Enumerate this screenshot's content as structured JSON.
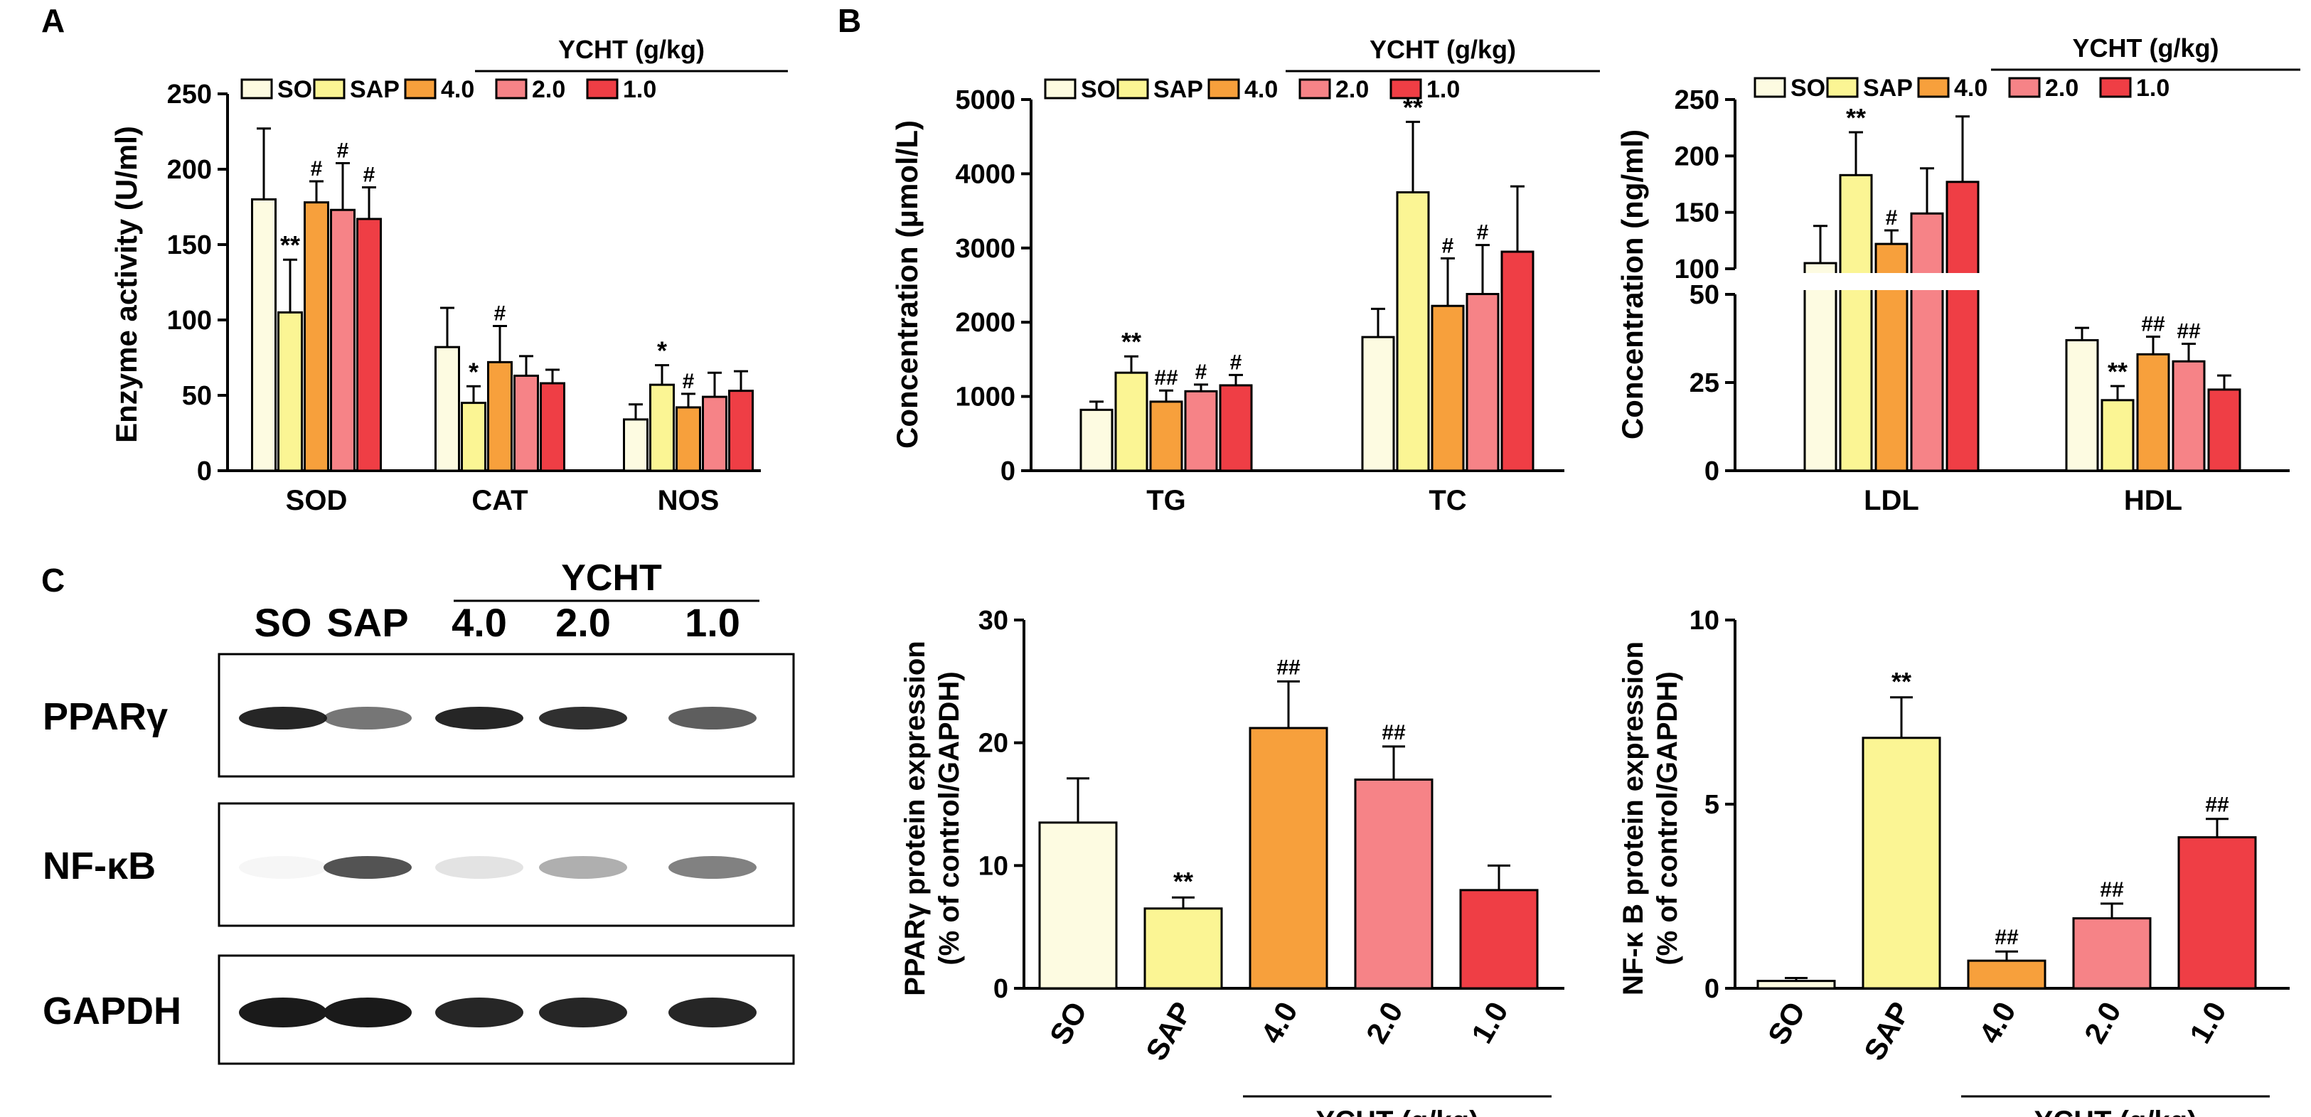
{
  "panel_letters": {
    "a": "A",
    "b": "B",
    "c": "C"
  },
  "colors": {
    "SO": "#FDFBE1",
    "SAP": "#FBF594",
    "4.0": "#F7A03C",
    "2.0": "#F68387",
    "1.0": "#EF3E45",
    "axis": "#000000"
  },
  "western_blot": {
    "header": {
      "ycht": "YCHT"
    },
    "lanes": [
      "SO",
      "SAP",
      "4.0",
      "2.0",
      "1.0"
    ],
    "rows": [
      {
        "label": "PPARγ",
        "intensities": [
          0.95,
          0.6,
          0.95,
          0.9,
          0.7
        ]
      },
      {
        "label": "NF-κB",
        "intensities": [
          0.04,
          0.75,
          0.12,
          0.35,
          0.55
        ]
      },
      {
        "label": "GAPDH",
        "intensities": [
          1.0,
          1.0,
          0.95,
          0.95,
          0.95
        ]
      }
    ]
  },
  "chart_data": [
    {
      "id": "A",
      "type": "bar",
      "ylabel": "Enzyme activity (U/ml)",
      "ylim": [
        0,
        250
      ],
      "yticks": [
        "0",
        "50",
        "100",
        "150",
        "200",
        "250"
      ],
      "legend": [
        "SO",
        "SAP",
        "4.0",
        "2.0",
        "1.0"
      ],
      "legend_header": "YCHT (g/kg)",
      "categories": [
        "SOD",
        "CAT",
        "NOS"
      ],
      "series": [
        {
          "name": "SO",
          "values": [
            180,
            82,
            34
          ],
          "errors": [
            47,
            26,
            10
          ],
          "marks": [
            "",
            "",
            ""
          ]
        },
        {
          "name": "SAP",
          "values": [
            105,
            45,
            57
          ],
          "errors": [
            35,
            11,
            13
          ],
          "marks": [
            "**",
            "*",
            "*"
          ]
        },
        {
          "name": "4.0",
          "values": [
            178,
            72,
            42
          ],
          "errors": [
            14,
            24,
            9
          ],
          "marks": [
            "#",
            "#",
            "#"
          ]
        },
        {
          "name": "2.0",
          "values": [
            173,
            63,
            49
          ],
          "errors": [
            31,
            13,
            16
          ],
          "marks": [
            "#",
            "",
            ""
          ]
        },
        {
          "name": "1.0",
          "values": [
            167,
            58,
            53
          ],
          "errors": [
            21,
            9,
            13
          ],
          "marks": [
            "#",
            "",
            ""
          ]
        }
      ]
    },
    {
      "id": "B1",
      "type": "bar",
      "ylabel": "Concentration (μmol/L)",
      "ylim": [
        0,
        5000
      ],
      "yticks": [
        "0",
        "1000",
        "2000",
        "3000",
        "4000",
        "5000"
      ],
      "legend": [
        "SO",
        "SAP",
        "4.0",
        "2.0",
        "1.0"
      ],
      "legend_header": "YCHT (g/kg)",
      "categories": [
        "TG",
        "TC"
      ],
      "series": [
        {
          "name": "SO",
          "values": [
            820,
            1800
          ],
          "errors": [
            110,
            380
          ],
          "marks": [
            "",
            ""
          ]
        },
        {
          "name": "SAP",
          "values": [
            1320,
            3750
          ],
          "errors": [
            220,
            950
          ],
          "marks": [
            "**",
            "**"
          ]
        },
        {
          "name": "4.0",
          "values": [
            930,
            2220
          ],
          "errors": [
            150,
            640
          ],
          "marks": [
            "##",
            "#"
          ]
        },
        {
          "name": "2.0",
          "values": [
            1070,
            2380
          ],
          "errors": [
            90,
            660
          ],
          "marks": [
            "#",
            "#"
          ]
        },
        {
          "name": "1.0",
          "values": [
            1150,
            2950
          ],
          "errors": [
            140,
            880
          ],
          "marks": [
            "#",
            ""
          ]
        }
      ]
    },
    {
      "id": "B2",
      "type": "bar",
      "ylabel": "Concentration (ng/ml)",
      "broken_axis": true,
      "ylim_lower": [
        0,
        50
      ],
      "ylim_upper": [
        100,
        250
      ],
      "yticks_lower": [
        "0",
        "25",
        "50"
      ],
      "yticks_upper": [
        "100",
        "150",
        "200",
        "250"
      ],
      "legend": [
        "SO",
        "SAP",
        "4.0",
        "2.0",
        "1.0"
      ],
      "legend_header": "YCHT (g/kg)",
      "categories": [
        "LDL",
        "HDL"
      ],
      "series": [
        {
          "name": "SO",
          "values": [
            105,
            37
          ],
          "errors": [
            33,
            3.5
          ],
          "marks": [
            "",
            ""
          ]
        },
        {
          "name": "SAP",
          "values": [
            183,
            20
          ],
          "errors": [
            38,
            4
          ],
          "marks": [
            "**",
            "**"
          ]
        },
        {
          "name": "4.0",
          "values": [
            122,
            33
          ],
          "errors": [
            12,
            5
          ],
          "marks": [
            "#",
            "##"
          ]
        },
        {
          "name": "2.0",
          "values": [
            149,
            31
          ],
          "errors": [
            40,
            5
          ],
          "marks": [
            "",
            "##"
          ]
        },
        {
          "name": "1.0",
          "values": [
            177,
            23
          ],
          "errors": [
            58,
            4
          ],
          "marks": [
            "",
            ""
          ]
        }
      ]
    },
    {
      "id": "C1",
      "type": "bar",
      "ylabel_line1": "PPARγ  protein expression",
      "ylabel_line2": "(% of control/GAPDH)",
      "ylim": [
        0,
        30
      ],
      "yticks": [
        "0",
        "10",
        "20",
        "30"
      ],
      "categories": [
        "SO",
        "SAP",
        "4.0",
        "2.0",
        "1.0"
      ],
      "group_label": "YCHT (g/kg)",
      "values": [
        13.5,
        6.5,
        21.2,
        17.0,
        8.0
      ],
      "errors": [
        3.6,
        0.9,
        3.8,
        2.7,
        2.0
      ],
      "marks": [
        "",
        "**",
        "##",
        "##",
        ""
      ]
    },
    {
      "id": "C2",
      "type": "bar",
      "ylabel_line1": "NF-κ B protein expression",
      "ylabel_line2": "(% of control/GAPDH)",
      "ylim": [
        0,
        10
      ],
      "yticks": [
        "0",
        "5",
        "10"
      ],
      "categories": [
        "SO",
        "SAP",
        "4.0",
        "2.0",
        "1.0"
      ],
      "group_label": "YCHT (g/kg)",
      "values": [
        0.2,
        6.8,
        0.75,
        1.9,
        4.1
      ],
      "errors": [
        0.08,
        1.1,
        0.25,
        0.4,
        0.5
      ],
      "marks": [
        "",
        "**",
        "##",
        "##",
        "##"
      ]
    }
  ]
}
